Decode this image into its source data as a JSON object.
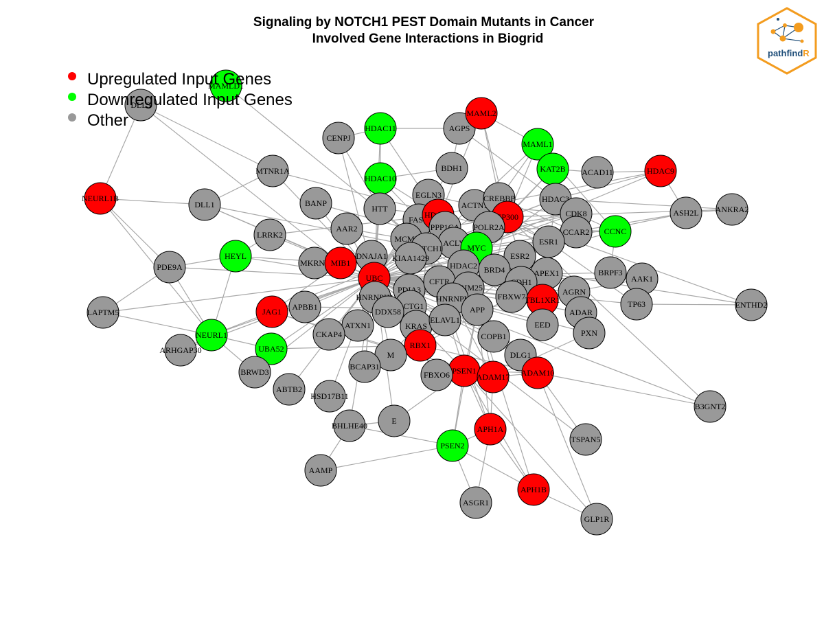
{
  "title": {
    "line1": "Signaling by NOTCH1 PEST Domain Mutants in Cancer",
    "line2": "Involved Gene Interactions in Biogrid"
  },
  "legend": [
    {
      "label": "Upregulated Input Genes",
      "color": "#ff0000"
    },
    {
      "label": "Downregulated Input Genes",
      "color": "#00ff00"
    },
    {
      "label": "Other",
      "color": "#999999"
    }
  ],
  "logo": {
    "text_main": "pathfind",
    "text_accent": "R",
    "border_color": "#f39c1f",
    "text_color": "#1f4e79"
  },
  "colors": {
    "up": "#ff0000",
    "down": "#00ff00",
    "other": "#999999",
    "edge": "#a8a8a8"
  },
  "nodes": [
    {
      "id": "MAMLD1",
      "type": "down"
    },
    {
      "id": "DLL3",
      "type": "other"
    },
    {
      "id": "NEURL1B",
      "type": "up"
    },
    {
      "id": "MTNR1A",
      "type": "other"
    },
    {
      "id": "DLL1",
      "type": "other"
    },
    {
      "id": "CENPJ",
      "type": "other"
    },
    {
      "id": "HDAC11",
      "type": "down"
    },
    {
      "id": "AGPS",
      "type": "other"
    },
    {
      "id": "MAML2",
      "type": "up"
    },
    {
      "id": "MAML1",
      "type": "down"
    },
    {
      "id": "KAT2B",
      "type": "down"
    },
    {
      "id": "ACAD11",
      "type": "other"
    },
    {
      "id": "HDAC9",
      "type": "up"
    },
    {
      "id": "BDH1",
      "type": "other"
    },
    {
      "id": "HDAC10",
      "type": "down"
    },
    {
      "id": "BANP",
      "type": "other"
    },
    {
      "id": "HTT",
      "type": "other"
    },
    {
      "id": "EGLN3",
      "type": "other"
    },
    {
      "id": "ACTN1",
      "type": "other"
    },
    {
      "id": "CREBBP",
      "type": "other"
    },
    {
      "id": "HDAC3",
      "type": "other"
    },
    {
      "id": "CDK8",
      "type": "other"
    },
    {
      "id": "ASH2L",
      "type": "other"
    },
    {
      "id": "ANKRA2",
      "type": "other"
    },
    {
      "id": "LRRK2",
      "type": "other"
    },
    {
      "id": "AAR2",
      "type": "other"
    },
    {
      "id": "FASN",
      "type": "other"
    },
    {
      "id": "HDAC6",
      "type": "up"
    },
    {
      "id": "EP300",
      "type": "up"
    },
    {
      "id": "POLR2A",
      "type": "other"
    },
    {
      "id": "PPP1CA",
      "type": "other"
    },
    {
      "id": "CCAR2",
      "type": "other"
    },
    {
      "id": "CCNC",
      "type": "down"
    },
    {
      "id": "MCM2",
      "type": "other"
    },
    {
      "id": "ACLY",
      "type": "other"
    },
    {
      "id": "MYC",
      "type": "down"
    },
    {
      "id": "ESR1",
      "type": "other"
    },
    {
      "id": "HEYL",
      "type": "down"
    },
    {
      "id": "PDE9A",
      "type": "other"
    },
    {
      "id": "MKRN2",
      "type": "other"
    },
    {
      "id": "MIB1",
      "type": "up"
    },
    {
      "id": "DNAJA1",
      "type": "other"
    },
    {
      "id": "NOTCH1",
      "type": "other"
    },
    {
      "id": "KIAA1429",
      "type": "other"
    },
    {
      "id": "HDAC2",
      "type": "other"
    },
    {
      "id": "ESR2",
      "type": "other"
    },
    {
      "id": "BRD4",
      "type": "other"
    },
    {
      "id": "APEX1",
      "type": "other"
    },
    {
      "id": "BRPF3",
      "type": "other"
    },
    {
      "id": "AAK1",
      "type": "other"
    },
    {
      "id": "UBC",
      "type": "up"
    },
    {
      "id": "PDIA3",
      "type": "other"
    },
    {
      "id": "CFTR",
      "type": "other"
    },
    {
      "id": "TRIM25",
      "type": "other"
    },
    {
      "id": "CDH1",
      "type": "other"
    },
    {
      "id": "FBXW7",
      "type": "other"
    },
    {
      "id": "TBL1XR1",
      "type": "up"
    },
    {
      "id": "AGRN",
      "type": "other"
    },
    {
      "id": "TP63",
      "type": "other"
    },
    {
      "id": "ENTHD2",
      "type": "other"
    },
    {
      "id": "LAPTM5",
      "type": "other"
    },
    {
      "id": "JAG1",
      "type": "up"
    },
    {
      "id": "APBB1",
      "type": "other"
    },
    {
      "id": "HNRNPH1",
      "type": "other"
    },
    {
      "id": "ACTG1",
      "type": "other"
    },
    {
      "id": "HNRNPL",
      "type": "other"
    },
    {
      "id": "APP",
      "type": "other"
    },
    {
      "id": "ADAR",
      "type": "other"
    },
    {
      "id": "DDX58",
      "type": "other"
    },
    {
      "id": "NEURL1",
      "type": "down"
    },
    {
      "id": "ATXN1",
      "type": "other"
    },
    {
      "id": "KRAS",
      "type": "other"
    },
    {
      "id": "ELAVL1",
      "type": "other"
    },
    {
      "id": "EED",
      "type": "other"
    },
    {
      "id": "CKAP4",
      "type": "other"
    },
    {
      "id": "COPB1",
      "type": "other"
    },
    {
      "id": "PXN",
      "type": "other"
    },
    {
      "id": "ARHGAP30",
      "type": "other"
    },
    {
      "id": "UBA52",
      "type": "down"
    },
    {
      "id": "RBX1",
      "type": "up"
    },
    {
      "id": "M",
      "type": "other"
    },
    {
      "id": "DLG1",
      "type": "other"
    },
    {
      "id": "BRWD3",
      "type": "other"
    },
    {
      "id": "BCAP31",
      "type": "other"
    },
    {
      "id": "ADAM10",
      "type": "up"
    },
    {
      "id": "PSEN1",
      "type": "up"
    },
    {
      "id": "ADAM17",
      "type": "up"
    },
    {
      "id": "FBXO6",
      "type": "other"
    },
    {
      "id": "ABTB2",
      "type": "other"
    },
    {
      "id": "HSD17B11",
      "type": "other"
    },
    {
      "id": "B3GNT2",
      "type": "other"
    },
    {
      "id": "E",
      "type": "other"
    },
    {
      "id": "BHLHE40",
      "type": "other"
    },
    {
      "id": "APH1A",
      "type": "up"
    },
    {
      "id": "TSPAN5",
      "type": "other"
    },
    {
      "id": "PSEN2",
      "type": "down"
    },
    {
      "id": "AAMP",
      "type": "other"
    },
    {
      "id": "APH1B",
      "type": "up"
    },
    {
      "id": "ASGR1",
      "type": "other"
    },
    {
      "id": "GLP1R",
      "type": "other"
    }
  ],
  "edges": [
    [
      "DLL3",
      "NEURL1B"
    ],
    [
      "DLL3",
      "MTNR1A"
    ],
    [
      "DLL3",
      "MIB1"
    ],
    [
      "NEURL1B",
      "DLL1"
    ],
    [
      "NEURL1B",
      "PDE9A"
    ],
    [
      "NEURL1B",
      "NEURL1"
    ],
    [
      "MTNR1A",
      "DLL1"
    ],
    [
      "MTNR1A",
      "ESR1"
    ],
    [
      "MTNR1A",
      "UBC"
    ],
    [
      "DLL1",
      "MIB1"
    ],
    [
      "DLL1",
      "NOTCH1"
    ],
    [
      "DLL1",
      "UBC"
    ],
    [
      "CENPJ",
      "HDAC11"
    ],
    [
      "CENPJ",
      "UBC"
    ],
    [
      "CENPJ",
      "HTT"
    ],
    [
      "HDAC11",
      "AGPS"
    ],
    [
      "HDAC11",
      "HDAC10"
    ],
    [
      "HDAC11",
      "UBC"
    ],
    [
      "HDAC11",
      "HDAC6"
    ],
    [
      "AGPS",
      "MAML2"
    ],
    [
      "AGPS",
      "BDH1"
    ],
    [
      "AGPS",
      "HDAC3"
    ],
    [
      "MAML2",
      "MAML1"
    ],
    [
      "MAML2",
      "NOTCH1"
    ],
    [
      "MAML2",
      "EP300"
    ],
    [
      "MAML2",
      "CREBBP"
    ],
    [
      "MAML1",
      "KAT2B"
    ],
    [
      "MAML1",
      "NOTCH1"
    ],
    [
      "MAML1",
      "EP300"
    ],
    [
      "MAML1",
      "CCNC"
    ],
    [
      "MAML1",
      "CREBBP"
    ],
    [
      "KAT2B",
      "ACAD11"
    ],
    [
      "KAT2B",
      "EP300"
    ],
    [
      "KAT2B",
      "MYC"
    ],
    [
      "KAT2B",
      "HDAC3"
    ],
    [
      "HDAC9",
      "ACAD11"
    ],
    [
      "HDAC9",
      "HDAC3"
    ],
    [
      "HDAC9",
      "ASH2L"
    ],
    [
      "HDAC9",
      "MYC"
    ],
    [
      "HDAC9",
      "HDAC6"
    ],
    [
      "BDH1",
      "HDAC10"
    ],
    [
      "BDH1",
      "UBC"
    ],
    [
      "HDAC10",
      "HDAC6"
    ],
    [
      "HDAC10",
      "UBC"
    ],
    [
      "HDAC10",
      "HDAC2"
    ],
    [
      "BANP",
      "UBC"
    ],
    [
      "BANP",
      "MYC"
    ],
    [
      "HTT",
      "UBC"
    ],
    [
      "HTT",
      "HDAC6"
    ],
    [
      "HTT",
      "NOTCH1"
    ],
    [
      "EGLN3",
      "UBC"
    ],
    [
      "EGLN3",
      "ACTN1"
    ],
    [
      "ACTN1",
      "CDK8"
    ],
    [
      "ACTN1",
      "ESR1"
    ],
    [
      "CREBBP",
      "EP300"
    ],
    [
      "CREBBP",
      "MYC"
    ],
    [
      "CREBBP",
      "NOTCH1"
    ],
    [
      "CREBBP",
      "CCAR2"
    ],
    [
      "HDAC3",
      "NOTCH1"
    ],
    [
      "HDAC3",
      "TBL1XR1"
    ],
    [
      "HDAC3",
      "HDAC2"
    ],
    [
      "HDAC3",
      "EP300"
    ],
    [
      "CDK8",
      "CCNC"
    ],
    [
      "CDK8",
      "MYC"
    ],
    [
      "CDK8",
      "NOTCH1"
    ],
    [
      "ASH2L",
      "ANKRA2"
    ],
    [
      "ASH2L",
      "MYC"
    ],
    [
      "ASH2L",
      "UBC"
    ],
    [
      "ANKRA2",
      "HDAC3"
    ],
    [
      "ANKRA2",
      "EP300"
    ],
    [
      "LRRK2",
      "UBC"
    ],
    [
      "LRRK2",
      "HEYL"
    ],
    [
      "LRRK2",
      "HDAC6"
    ],
    [
      "AAR2",
      "UBC"
    ],
    [
      "AAR2",
      "MCM2"
    ],
    [
      "FASN",
      "UBC"
    ],
    [
      "FASN",
      "MYC"
    ],
    [
      "HDAC6",
      "UBC"
    ],
    [
      "HDAC6",
      "MYC"
    ],
    [
      "HDAC6",
      "HDAC2"
    ],
    [
      "EP300",
      "MYC"
    ],
    [
      "EP300",
      "NOTCH1"
    ],
    [
      "EP300",
      "ESR1"
    ],
    [
      "EP300",
      "ESR2"
    ],
    [
      "EP300",
      "UBC"
    ],
    [
      "EP300",
      "HDAC2"
    ],
    [
      "EP300",
      "BRD4"
    ],
    [
      "POLR2A",
      "MYC"
    ],
    [
      "POLR2A",
      "CCNC"
    ],
    [
      "POLR2A",
      "CDK8"
    ],
    [
      "PPP1CA",
      "UBC"
    ],
    [
      "PPP1CA",
      "EP300"
    ],
    [
      "CCAR2",
      "UBC"
    ],
    [
      "CCAR2",
      "CCNC"
    ],
    [
      "CCNC",
      "ESR2"
    ],
    [
      "CCNC",
      "BRPF3"
    ],
    [
      "MCM2",
      "UBC"
    ],
    [
      "ACLY",
      "UBC"
    ],
    [
      "MYC",
      "UBC"
    ],
    [
      "MYC",
      "HDAC2"
    ],
    [
      "MYC",
      "ESR1"
    ],
    [
      "MYC",
      "TRIM25"
    ],
    [
      "MYC",
      "BRD4"
    ],
    [
      "MYC",
      "FBXW7"
    ],
    [
      "MYC",
      "HNRNPL"
    ],
    [
      "ESR1",
      "UBC"
    ],
    [
      "ESR1",
      "ESR2"
    ],
    [
      "ESR1",
      "TP63"
    ],
    [
      "HEYL",
      "MIB1"
    ],
    [
      "HEYL",
      "UBC"
    ],
    [
      "HEYL",
      "NEURL1"
    ],
    [
      "HEYL",
      "PDE9A"
    ],
    [
      "PDE9A",
      "NEURL1"
    ],
    [
      "PDE9A",
      "UBC"
    ],
    [
      "MKRN2",
      "UBC"
    ],
    [
      "MIB1",
      "UBC"
    ],
    [
      "MIB1",
      "JAG1"
    ],
    [
      "MIB1",
      "NOTCH1"
    ],
    [
      "MIB1",
      "DLL1"
    ],
    [
      "DNAJA1",
      "UBC"
    ],
    [
      "NOTCH1",
      "UBC"
    ],
    [
      "NOTCH1",
      "JAG1"
    ],
    [
      "NOTCH1",
      "PSEN1"
    ],
    [
      "NOTCH1",
      "ADAM10"
    ],
    [
      "NOTCH1",
      "ADAM17"
    ],
    [
      "NOTCH1",
      "RBX1"
    ],
    [
      "NOTCH1",
      "FBXW7"
    ],
    [
      "NOTCH1",
      "APH1A"
    ],
    [
      "KIAA1429",
      "UBC"
    ],
    [
      "HDAC2",
      "UBC"
    ],
    [
      "ESR2",
      "UBC"
    ],
    [
      "BRD4",
      "UBC"
    ],
    [
      "APEX1",
      "UBC"
    ],
    [
      "APEX1",
      "ESR1"
    ],
    [
      "BRPF3",
      "UBC"
    ],
    [
      "AAK1",
      "UBC"
    ],
    [
      "AAK1",
      "APP"
    ],
    [
      "UBC",
      "PDIA3"
    ],
    [
      "UBC",
      "CFTR"
    ],
    [
      "UBC",
      "TRIM25"
    ],
    [
      "UBC",
      "CDH1"
    ],
    [
      "UBC",
      "FBXW7"
    ],
    [
      "UBC",
      "TBL1XR1"
    ],
    [
      "UBC",
      "AGRN"
    ],
    [
      "UBC",
      "JAG1"
    ],
    [
      "UBC",
      "APBB1"
    ],
    [
      "UBC",
      "HNRNPH1"
    ],
    [
      "UBC",
      "ACTG1"
    ],
    [
      "UBC",
      "HNRNPL"
    ],
    [
      "UBC",
      "APP"
    ],
    [
      "UBC",
      "DDX58"
    ],
    [
      "UBC",
      "NEURL1"
    ],
    [
      "UBC",
      "ATXN1"
    ],
    [
      "UBC",
      "KRAS"
    ],
    [
      "UBC",
      "ELAVL1"
    ],
    [
      "UBC",
      "CKAP4"
    ],
    [
      "UBC",
      "COPB1"
    ],
    [
      "UBC",
      "UBA52"
    ],
    [
      "UBC",
      "RBX1"
    ],
    [
      "UBC",
      "M"
    ],
    [
      "UBC",
      "BCAP31"
    ],
    [
      "UBC",
      "PSEN1"
    ],
    [
      "UBC",
      "FBXO6"
    ],
    [
      "UBC",
      "HSD17B11"
    ],
    [
      "UBC",
      "BRWD3"
    ],
    [
      "UBC",
      "ABTB2"
    ],
    [
      "TP63",
      "ENTHD2"
    ],
    [
      "TP63",
      "UBC"
    ],
    [
      "ENTHD2",
      "EP300"
    ],
    [
      "ENTHD2",
      "APEX1"
    ],
    [
      "LAPTM5",
      "NEURL1"
    ],
    [
      "LAPTM5",
      "UBC"
    ],
    [
      "LAPTM5",
      "PDE9A"
    ],
    [
      "JAG1",
      "NEURL1"
    ],
    [
      "JAG1",
      "ADAM17"
    ],
    [
      "JAG1",
      "PSEN1"
    ],
    [
      "APBB1",
      "APP"
    ],
    [
      "APP",
      "PSEN1"
    ],
    [
      "APP",
      "ADAM10"
    ],
    [
      "APP",
      "ADAM17"
    ],
    [
      "APP",
      "APH1A"
    ],
    [
      "APP",
      "PSEN2"
    ],
    [
      "APP",
      "APH1B"
    ],
    [
      "ADAR",
      "UBC"
    ],
    [
      "EED",
      "UBC"
    ],
    [
      "EED",
      "EP300"
    ],
    [
      "PXN",
      "UBC"
    ],
    [
      "PXN",
      "ADAM17"
    ],
    [
      "ARHGAP30",
      "NEURL1"
    ],
    [
      "ARHGAP30",
      "UBC"
    ],
    [
      "UBA52",
      "NEURL1"
    ],
    [
      "UBA52",
      "RBX1"
    ],
    [
      "RBX1",
      "FBXW7"
    ],
    [
      "RBX1",
      "ADAM10"
    ],
    [
      "RBX1",
      "ESR1"
    ],
    [
      "M",
      "KRAS"
    ],
    [
      "DLG1",
      "ADAM10"
    ],
    [
      "DLG1",
      "UBC"
    ],
    [
      "BRWD3",
      "NEURL1"
    ],
    [
      "BCAP31",
      "UBC"
    ],
    [
      "ADAM10",
      "PSEN1"
    ],
    [
      "ADAM10",
      "TSPAN5"
    ],
    [
      "ADAM10",
      "GLP1R"
    ],
    [
      "ADAM10",
      "B3GNT2"
    ],
    [
      "ADAM10",
      "ADAM17"
    ],
    [
      "PSEN1",
      "PSEN2"
    ],
    [
      "PSEN1",
      "APH1A"
    ],
    [
      "PSEN1",
      "APH1B"
    ],
    [
      "PSEN1",
      "E"
    ],
    [
      "PSEN1",
      "ADAM17"
    ],
    [
      "ADAM17",
      "APH1A"
    ],
    [
      "FBXO6",
      "UBC"
    ],
    [
      "FBXO6",
      "PSEN1"
    ],
    [
      "B3GNT2",
      "UBC"
    ],
    [
      "B3GNT2",
      "EP300"
    ],
    [
      "E",
      "BHLHE40"
    ],
    [
      "E",
      "UBC"
    ],
    [
      "BHLHE40",
      "UBC"
    ],
    [
      "BHLHE40",
      "PSEN2"
    ],
    [
      "APH1A",
      "PSEN2"
    ],
    [
      "APH1A",
      "APH1B"
    ],
    [
      "APH1A",
      "ASGR1"
    ],
    [
      "TSPAN5",
      "UBC"
    ],
    [
      "PSEN2",
      "APH1B"
    ],
    [
      "PSEN2",
      "AAMP"
    ],
    [
      "PSEN2",
      "ASGR1"
    ],
    [
      "AAMP",
      "BHLHE40"
    ],
    [
      "APH1B",
      "GLP1R"
    ],
    [
      "GLP1R",
      "PSEN1"
    ],
    [
      "MAMLD1",
      "NOTCH1"
    ]
  ]
}
